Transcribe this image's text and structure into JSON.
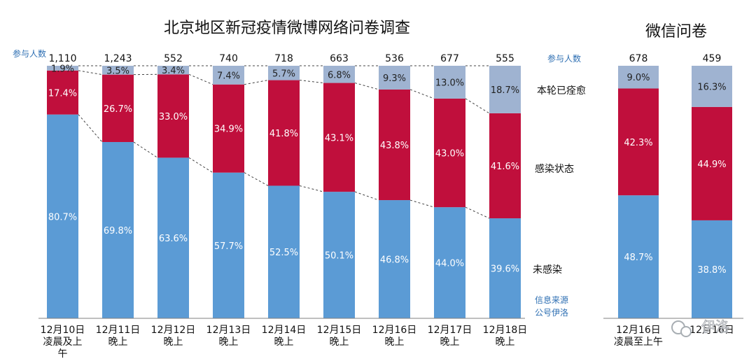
{
  "colors": {
    "not_infected": "#5b9bd5",
    "infected": "#c00f3c",
    "recovered": "#9fb3d1",
    "annotation_blue": "#2e6fb3"
  },
  "weibo_title": "北京地区新冠疫情微博网络问卷调查",
  "wechat_title": "微信问卷",
  "participants_label": "参与人数",
  "source_label": "信息来源",
  "source_account": "公号伊洛",
  "watermark": "伊洛",
  "category_labels": {
    "recovered": "本轮已痊愈",
    "infected": "感染状态",
    "not_infected": "未感染"
  },
  "chart_data": [
    {
      "type": "bar",
      "stacked": true,
      "normalized": true,
      "title": "北京地区新冠疫情微博网络问卷调查",
      "categories": [
        [
          "12月10日",
          "凌晨及上",
          "午"
        ],
        [
          "12月11日",
          "晚上"
        ],
        [
          "12月12日",
          "晚上"
        ],
        [
          "12月13日",
          "晚上"
        ],
        [
          "12月14日",
          "晚上"
        ],
        [
          "12月15日",
          "晚上"
        ],
        [
          "12月16日",
          "晚上"
        ],
        [
          "12月17日",
          "晚上"
        ],
        [
          "12月18日",
          "晚上"
        ]
      ],
      "participants": [
        "1,110",
        "1,243",
        "552",
        "740",
        "718",
        "663",
        "536",
        "677",
        "555"
      ],
      "series": [
        {
          "name": "未感染",
          "values": [
            80.7,
            69.8,
            63.6,
            57.7,
            52.5,
            50.1,
            46.8,
            44.0,
            39.6
          ],
          "labels": [
            "80.7%",
            "69.8%",
            "63.6%",
            "57.7%",
            "52.5%",
            "50.1%",
            "46.8%",
            "44.0%",
            "39.6%"
          ]
        },
        {
          "name": "感染状态",
          "values": [
            17.4,
            26.7,
            33.0,
            34.9,
            41.8,
            43.1,
            43.8,
            43.0,
            41.6
          ],
          "labels": [
            "17.4%",
            "26.7%",
            "33.0%",
            "34.9%",
            "41.8%",
            "43.1%",
            "43.8%",
            "43.0%",
            "41.6%"
          ]
        },
        {
          "name": "本轮已痊愈",
          "values": [
            1.9,
            3.5,
            3.4,
            7.4,
            5.7,
            6.8,
            9.3,
            13.0,
            18.7
          ],
          "labels": [
            "1.9%",
            "3.5%",
            "3.4%",
            "7.4%",
            "5.7%",
            "6.8%",
            "9.3%",
            "13.0%",
            "18.7%"
          ]
        }
      ],
      "ylim": [
        0,
        100
      ],
      "grid": false
    },
    {
      "type": "bar",
      "stacked": true,
      "normalized": true,
      "title": "微信问卷",
      "categories": [
        [
          "12月16日",
          "凌晨至上午"
        ],
        [
          "12月16日"
        ]
      ],
      "participants": [
        "678",
        "459"
      ],
      "series": [
        {
          "name": "未感染",
          "values": [
            48.7,
            38.8
          ],
          "labels": [
            "48.7%",
            "38.8%"
          ]
        },
        {
          "name": "感染状态",
          "values": [
            42.3,
            44.9
          ],
          "labels": [
            "42.3%",
            "44.9%"
          ]
        },
        {
          "name": "本轮已痊愈",
          "values": [
            9.0,
            16.3
          ],
          "labels": [
            "9.0%",
            "16.3%"
          ]
        }
      ],
      "ylim": [
        0,
        100
      ],
      "grid": false
    }
  ]
}
